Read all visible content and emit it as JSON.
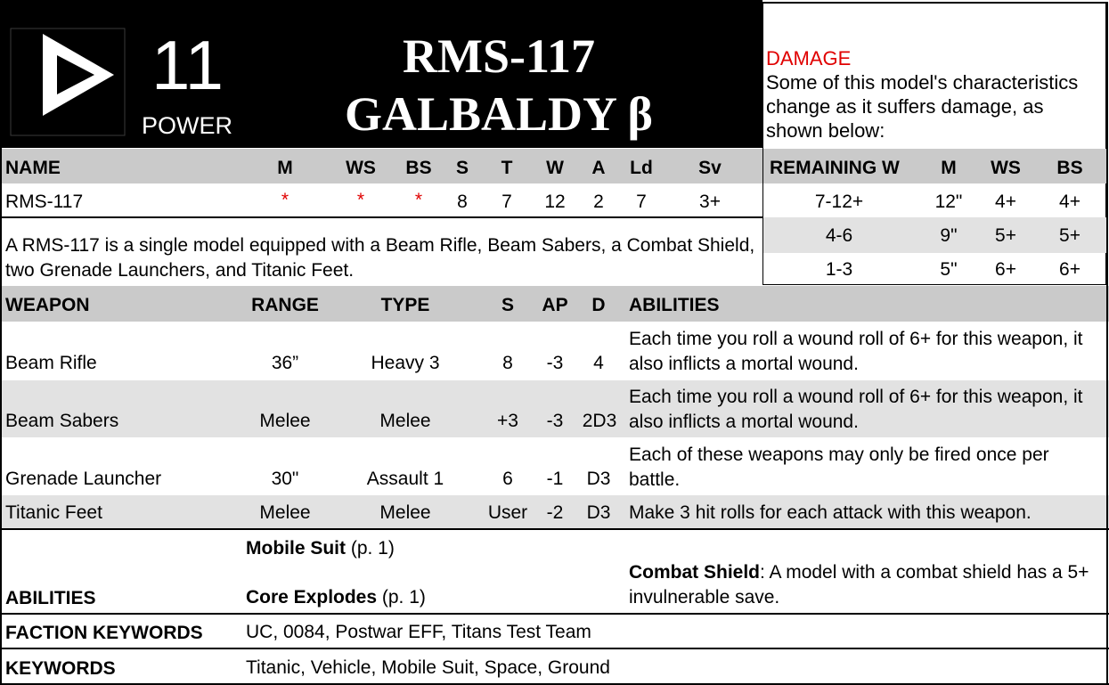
{
  "header": {
    "power_value": "11",
    "power_label": "POWER",
    "title_line1": "RMS-117",
    "title_line2": "GALBALDY β"
  },
  "damage": {
    "title": "DAMAGE",
    "description": "Some of this model's characteristics change as it suffers damage, as shown below:",
    "headers": [
      "REMAINING W",
      "M",
      "WS",
      "BS"
    ],
    "rows": [
      [
        "7-12+",
        "12\"",
        "4+",
        "4+"
      ],
      [
        "4-6",
        "9\"",
        "5+",
        "5+"
      ],
      [
        "1-3",
        "5\"",
        "6+",
        "6+"
      ]
    ]
  },
  "profile": {
    "headers": [
      "NAME",
      "M",
      "WS",
      "BS",
      "S",
      "T",
      "W",
      "A",
      "Ld",
      "Sv"
    ],
    "row": [
      "RMS-117",
      "*",
      "*",
      "*",
      "8",
      "7",
      "12",
      "2",
      "7",
      "3+"
    ]
  },
  "description": "A RMS-117 is a single model equipped with a Beam Rifle, Beam Sabers, a Combat Shield, two Grenade Launchers, and Titanic Feet.",
  "weapons": {
    "headers": [
      "WEAPON",
      "RANGE",
      "TYPE",
      "S",
      "AP",
      "D",
      "ABILITIES"
    ],
    "rows": [
      {
        "name": "Beam Rifle",
        "range": "36”",
        "type": "Heavy 3",
        "s": "8",
        "ap": "-3",
        "d": "4",
        "abilities": "Each time you roll a wound roll of 6+ for this weapon, it also inflicts a mortal wound."
      },
      {
        "name": "Beam Sabers",
        "range": "Melee",
        "type": "Melee",
        "s": "+3",
        "ap": "-3",
        "d": "2D3",
        "abilities": "Each time you roll a wound roll of 6+ for this weapon, it also inflicts a mortal wound."
      },
      {
        "name": "Grenade Launcher",
        "range": "30\"",
        "type": "Assault 1",
        "s": "6",
        "ap": "-1",
        "d": "D3",
        "abilities": "Each of these weapons may only be fired once per battle."
      },
      {
        "name": "Titanic Feet",
        "range": "Melee",
        "type": "Melee",
        "s": "User",
        "ap": "-2",
        "d": "D3",
        "abilities": "Make 3 hit rolls for each attack with this weapon."
      }
    ]
  },
  "abilities": {
    "label": "ABILITIES",
    "items": [
      {
        "name": "Mobile Suit",
        "ref": " (p. 1)"
      },
      {
        "name": "Core Explodes",
        "ref": " (p. 1)"
      }
    ],
    "side_name": "Combat Shield",
    "side_text": ": A model with a combat shield has a 5+ invulnerable save."
  },
  "faction_keywords": {
    "label": "FACTION KEYWORDS",
    "value": "UC, 0084, Postwar EFF, Titans Test Team"
  },
  "keywords": {
    "label": "KEYWORDS",
    "value": "Titanic, Vehicle, Mobile Suit, Space, Ground"
  },
  "colors": {
    "header_bg": "#000000",
    "header_band": "#cacaca",
    "alt_row": "#e2e2e2",
    "damage_title": "#e00000",
    "profile_star": "#e00000"
  },
  "icons": {
    "power": "power-triangle-icon"
  }
}
